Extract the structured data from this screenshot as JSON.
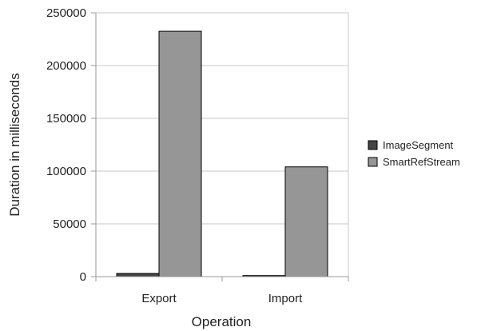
{
  "chart_data": {
    "type": "bar",
    "title": "",
    "xlabel": "Operation",
    "ylabel": "Duration in milliseconds",
    "categories": [
      "Export",
      "Import"
    ],
    "series": [
      {
        "name": "ImageSegment",
        "values": [
          3000,
          1000
        ],
        "color": "#454545"
      },
      {
        "name": "SmartRefStream",
        "values": [
          232500,
          104000
        ],
        "color": "#969696"
      }
    ],
    "ylim": [
      0,
      250000
    ],
    "yticks": [
      "0",
      "50000",
      "100000",
      "150000",
      "200000",
      "250000"
    ],
    "grid": true,
    "legend": "right"
  }
}
